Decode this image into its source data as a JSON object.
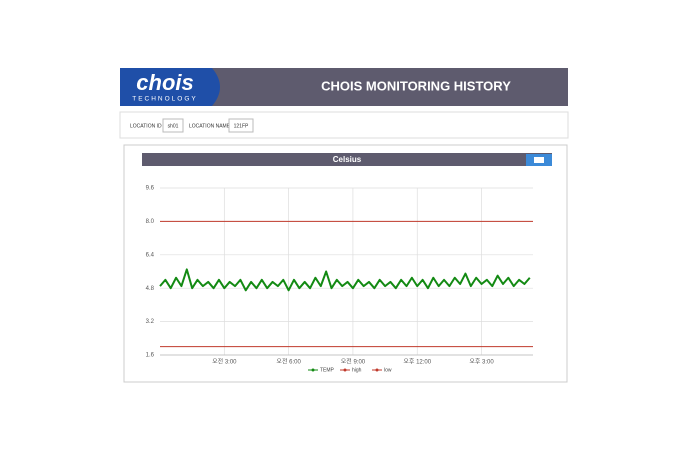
{
  "header": {
    "logo": "chois",
    "logo_sub": "TECHNOLOGY",
    "title": "CHOIS MONITORING HISTORY"
  },
  "fields": [
    {
      "label": "LOCATION ID",
      "value": "sh01"
    },
    {
      "label": "LOCATION NAME",
      "value": "121FP"
    }
  ],
  "chart_data": {
    "type": "line",
    "title": "Celsius",
    "xlim": [
      0,
      17.4
    ],
    "ylim": [
      1.6,
      9.6
    ],
    "xticks": [
      {
        "value": 3,
        "label": "오전 3:00"
      },
      {
        "value": 6,
        "label": "오전 6:00"
      },
      {
        "value": 9,
        "label": "오전 9:00"
      },
      {
        "value": 12,
        "label": "오후 12:00"
      },
      {
        "value": 15,
        "label": "오후 3:00"
      }
    ],
    "yticks": [
      1.6,
      3.2,
      {
        "value": 4.8,
        "label": "4.8"
      },
      6.4,
      {
        "value": 8,
        "label": "8.0"
      },
      9.6
    ],
    "grid": true,
    "series": [
      {
        "name": "TEMP",
        "color": "#138a13",
        "x": [
          0,
          0.25,
          0.5,
          0.75,
          1,
          1.25,
          1.5,
          1.75,
          2,
          2.25,
          2.5,
          2.75,
          3,
          3.25,
          3.5,
          3.75,
          4,
          4.25,
          4.5,
          4.75,
          5,
          5.25,
          5.5,
          5.75,
          6,
          6.25,
          6.5,
          6.75,
          7,
          7.25,
          7.5,
          7.75,
          8,
          8.25,
          8.5,
          8.75,
          9,
          9.25,
          9.5,
          9.75,
          10,
          10.25,
          10.5,
          10.75,
          11,
          11.25,
          11.5,
          11.75,
          12,
          12.25,
          12.5,
          12.75,
          13,
          13.25,
          13.5,
          13.75,
          14,
          14.25,
          14.5,
          14.75,
          15,
          15.25,
          15.5,
          15.75,
          16,
          16.25,
          16.5,
          16.75,
          17,
          17.25
        ],
        "values": [
          4.9,
          5.2,
          4.8,
          5.3,
          4.9,
          5.7,
          4.8,
          5.2,
          4.9,
          5.1,
          4.8,
          5.2,
          4.8,
          5.1,
          4.9,
          5.2,
          4.7,
          5.1,
          4.8,
          5.2,
          4.8,
          5.1,
          4.9,
          5.2,
          4.7,
          5.2,
          4.8,
          5.1,
          4.8,
          5.3,
          4.9,
          5.6,
          4.8,
          5.2,
          4.9,
          5.1,
          4.8,
          5.2,
          4.9,
          5.1,
          4.8,
          5.2,
          4.9,
          5.1,
          4.8,
          5.2,
          4.9,
          5.3,
          4.9,
          5.2,
          4.8,
          5.3,
          4.9,
          5.2,
          4.9,
          5.3,
          5.0,
          5.5,
          4.9,
          5.3,
          5.0,
          5.2,
          4.9,
          5.4,
          5.0,
          5.3,
          4.9,
          5.2,
          5.0,
          5.3
        ]
      },
      {
        "name": "high",
        "color": "#c0392b",
        "x": [
          0,
          17.4
        ],
        "values": [
          8,
          8
        ]
      },
      {
        "name": "low",
        "color": "#c0392b",
        "x": [
          0,
          17.4
        ],
        "values": [
          2,
          2
        ]
      }
    ]
  }
}
